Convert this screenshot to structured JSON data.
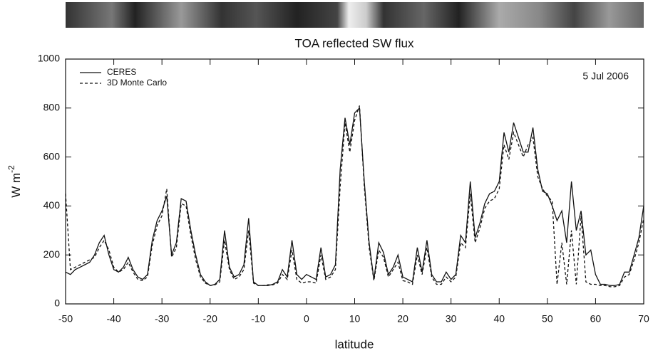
{
  "chart_data": {
    "type": "line",
    "title": "TOA reflected SW flux",
    "xlabel": "latitude",
    "ylabel": {
      "text": "W m",
      "superscript": "-2"
    },
    "annotation": "5 Jul 2006",
    "legend": "upper left",
    "xlim": [
      -50,
      70
    ],
    "xticks": [
      -50,
      -40,
      -30,
      -20,
      -10,
      0,
      10,
      20,
      30,
      40,
      50,
      60,
      70
    ],
    "ylim": [
      0,
      1000
    ],
    "yticks": [
      0,
      200,
      400,
      600,
      800,
      1000
    ],
    "x": [
      -50,
      -49,
      -48,
      -47,
      -46,
      -45,
      -44,
      -43,
      -42,
      -41,
      -40,
      -39,
      -38,
      -37,
      -36,
      -35,
      -34,
      -33,
      -32,
      -31,
      -30,
      -29,
      -28,
      -27,
      -26,
      -25,
      -24,
      -23,
      -22,
      -21,
      -20,
      -19,
      -18,
      -17,
      -16,
      -15,
      -14,
      -13,
      -12,
      -11,
      -10,
      -9,
      -8,
      -7,
      -6,
      -5,
      -4,
      -3,
      -2,
      -1,
      0,
      1,
      2,
      3,
      4,
      5,
      6,
      7,
      8,
      9,
      10,
      11,
      12,
      13,
      14,
      15,
      16,
      17,
      18,
      19,
      20,
      21,
      22,
      23,
      24,
      25,
      26,
      27,
      28,
      29,
      30,
      31,
      32,
      33,
      34,
      35,
      36,
      37,
      38,
      39,
      40,
      41,
      42,
      43,
      44,
      45,
      46,
      47,
      48,
      49,
      50,
      51,
      52,
      53,
      54,
      55,
      56,
      57,
      58,
      59,
      60,
      61,
      62,
      63,
      64,
      65,
      66,
      67,
      68,
      69,
      70
    ],
    "series": [
      {
        "name": "CERES",
        "color": "#111111",
        "dash": "none",
        "values": [
          130,
          120,
          140,
          150,
          160,
          170,
          200,
          250,
          280,
          200,
          140,
          130,
          150,
          190,
          140,
          110,
          100,
          120,
          260,
          340,
          380,
          440,
          200,
          250,
          430,
          420,
          300,
          200,
          120,
          90,
          75,
          80,
          100,
          300,
          150,
          110,
          120,
          160,
          350,
          90,
          75,
          75,
          75,
          80,
          90,
          140,
          110,
          260,
          120,
          100,
          120,
          110,
          100,
          230,
          110,
          120,
          160,
          550,
          760,
          650,
          780,
          800,
          500,
          250,
          100,
          250,
          210,
          120,
          150,
          200,
          110,
          100,
          90,
          230,
          130,
          260,
          120,
          90,
          90,
          130,
          100,
          120,
          280,
          250,
          500,
          270,
          330,
          410,
          450,
          460,
          500,
          700,
          620,
          740,
          680,
          620,
          620,
          720,
          550,
          460,
          450,
          400,
          340,
          380,
          250,
          500,
          300,
          380,
          200,
          220,
          120,
          80,
          80,
          75,
          75,
          80,
          130,
          130,
          200,
          270,
          400
        ]
      },
      {
        "name": "3D Monte Carlo",
        "color": "#111111",
        "dash": "4 3",
        "values": [
          450,
          140,
          150,
          160,
          170,
          180,
          190,
          230,
          260,
          220,
          150,
          130,
          140,
          170,
          130,
          100,
          95,
          110,
          240,
          320,
          360,
          470,
          190,
          230,
          410,
          400,
          280,
          180,
          110,
          85,
          75,
          78,
          90,
          260,
          140,
          100,
          110,
          140,
          300,
          85,
          75,
          75,
          78,
          78,
          85,
          120,
          100,
          220,
          100,
          85,
          90,
          90,
          85,
          200,
          100,
          110,
          140,
          480,
          740,
          620,
          750,
          810,
          480,
          230,
          95,
          220,
          190,
          110,
          140,
          170,
          95,
          90,
          80,
          200,
          120,
          230,
          110,
          80,
          80,
          110,
          90,
          110,
          250,
          230,
          450,
          250,
          310,
          390,
          420,
          430,
          470,
          650,
          590,
          700,
          650,
          600,
          650,
          680,
          520,
          470,
          440,
          420,
          80,
          250,
          80,
          300,
          80,
          360,
          90,
          80,
          80,
          75,
          75,
          70,
          70,
          75,
          110,
          120,
          180,
          250,
          350
        ]
      }
    ]
  }
}
